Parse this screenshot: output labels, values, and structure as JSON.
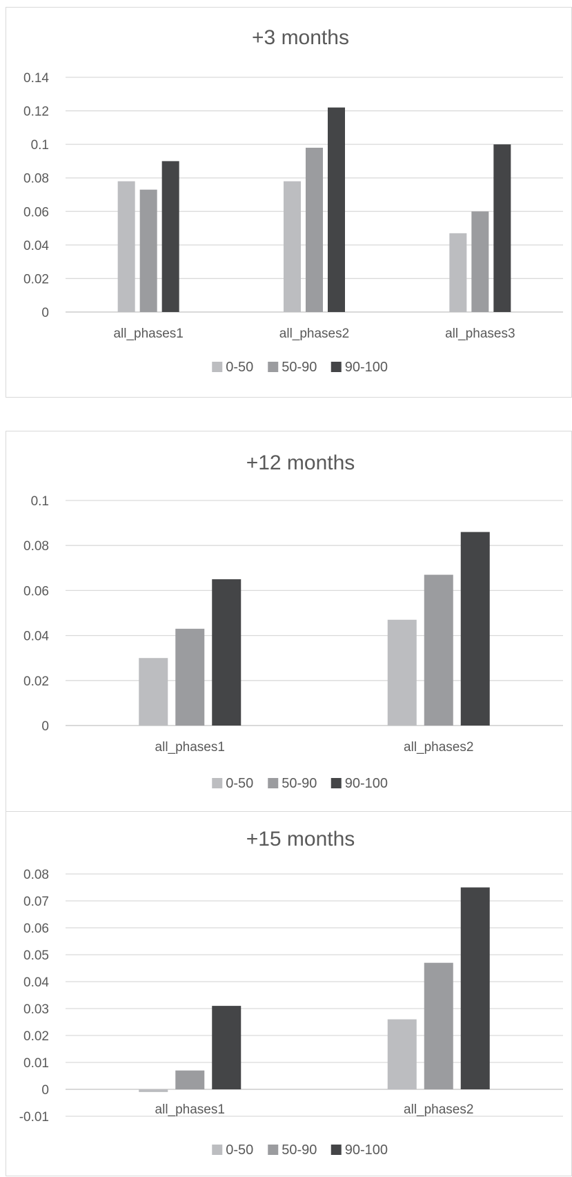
{
  "colors": {
    "0-50": "#bcbdc0",
    "50-90": "#9b9c9f",
    "90-100": "#444547",
    "grid": "#d9d9d9",
    "text": "#595959"
  },
  "chart_data": [
    {
      "type": "bar",
      "title": "+3 months",
      "categories": [
        "all_phases1",
        "all_phases2",
        "all_phases3"
      ],
      "series": [
        {
          "name": "0-50",
          "values": [
            0.078,
            0.078,
            0.047
          ]
        },
        {
          "name": "50-90",
          "values": [
            0.073,
            0.098,
            0.06
          ]
        },
        {
          "name": "90-100",
          "values": [
            0.09,
            0.122,
            0.1
          ]
        }
      ],
      "yticks": [
        "0",
        "0.02",
        "0.04",
        "0.06",
        "0.08",
        "0.1",
        "0.12",
        "0.14"
      ],
      "ylim": [
        0,
        0.14
      ],
      "grid": true,
      "legend": "bottom"
    },
    {
      "type": "bar",
      "title": "+12 months",
      "categories": [
        "all_phases1",
        "all_phases2"
      ],
      "series": [
        {
          "name": "0-50",
          "values": [
            0.03,
            0.047
          ]
        },
        {
          "name": "50-90",
          "values": [
            0.043,
            0.067
          ]
        },
        {
          "name": "90-100",
          "values": [
            0.065,
            0.086
          ]
        }
      ],
      "yticks": [
        "0",
        "0.02",
        "0.04",
        "0.06",
        "0.08",
        "0.1"
      ],
      "ylim": [
        0,
        0.1
      ],
      "grid": true,
      "legend": "bottom"
    },
    {
      "type": "bar",
      "title": "+15 months",
      "categories": [
        "all_phases1",
        "all_phases2"
      ],
      "series": [
        {
          "name": "0-50",
          "values": [
            -0.001,
            0.026
          ]
        },
        {
          "name": "50-90",
          "values": [
            0.007,
            0.047
          ]
        },
        {
          "name": "90-100",
          "values": [
            0.031,
            0.075
          ]
        }
      ],
      "yticks": [
        "-0.01",
        "0",
        "0.01",
        "0.02",
        "0.03",
        "0.04",
        "0.05",
        "0.06",
        "0.07",
        "0.08"
      ],
      "ylim": [
        -0.01,
        0.08
      ],
      "grid": true,
      "legend": "bottom"
    }
  ]
}
